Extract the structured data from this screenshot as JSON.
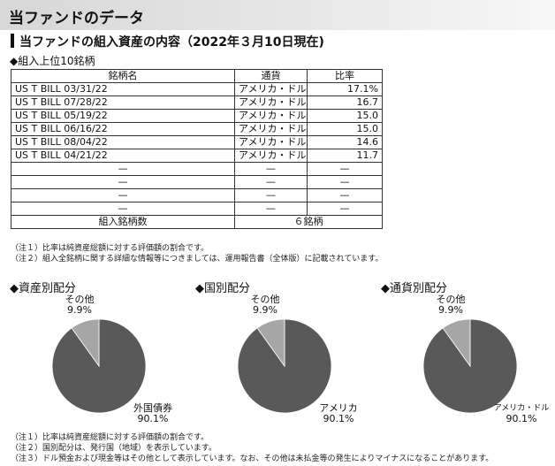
{
  "header": {
    "title": "当ファンドのデータ"
  },
  "section": {
    "title": "当ファンドの組入資産の内容（2022年３月10日現在)",
    "top10_title": "◆組入上位10銘柄"
  },
  "holdings_table": {
    "headers": {
      "name": "銘柄名",
      "currency": "通貨",
      "ratio": "比率"
    },
    "rows": [
      {
        "name": "US T BILL 03/31/22",
        "currency": "アメリカ・ドル",
        "ratio": "17.1%"
      },
      {
        "name": "US T BILL 07/28/22",
        "currency": "アメリカ・ドル",
        "ratio": "16.7"
      },
      {
        "name": "US T BILL 05/19/22",
        "currency": "アメリカ・ドル",
        "ratio": "15.0"
      },
      {
        "name": "US T BILL 06/16/22",
        "currency": "アメリカ・ドル",
        "ratio": "15.0"
      },
      {
        "name": "US T BILL 08/04/22",
        "currency": "アメリカ・ドル",
        "ratio": "14.6"
      },
      {
        "name": "US T BILL 04/21/22",
        "currency": "アメリカ・ドル",
        "ratio": "11.7"
      },
      {
        "name": "—",
        "currency": "—",
        "ratio": "—"
      },
      {
        "name": "—",
        "currency": "—",
        "ratio": "—"
      },
      {
        "name": "—",
        "currency": "—",
        "ratio": "—"
      },
      {
        "name": "—",
        "currency": "—",
        "ratio": "—"
      }
    ],
    "total_label": "組入銘柄数",
    "total_value": "６銘柄"
  },
  "table_notes": [
    "（注１）比率は純資産総額に対する評価額の割合です。",
    "（注２）組入全銘柄に関する詳細な情報等につきましては、運用報告書（全体版）に記載されています。"
  ],
  "chart_data": [
    {
      "type": "pie",
      "title": "◆資産別配分",
      "slices": [
        {
          "label": "外国債券",
          "value": 90.1,
          "value_label": "90.1%",
          "color": "#595959"
        },
        {
          "label": "その他",
          "value": 9.9,
          "value_label": "9.9%",
          "color": "#a6a6a6"
        }
      ]
    },
    {
      "type": "pie",
      "title": "◆国別配分",
      "slices": [
        {
          "label": "アメリカ",
          "value": 90.1,
          "value_label": "90.1%",
          "color": "#595959"
        },
        {
          "label": "その他",
          "value": 9.9,
          "value_label": "9.9%",
          "color": "#a6a6a6"
        }
      ]
    },
    {
      "type": "pie",
      "title": "◆通貨別配分",
      "slices": [
        {
          "label": "アメリカ・ドル",
          "value": 90.1,
          "value_label": "90.1%",
          "color": "#595959"
        },
        {
          "label": "その他",
          "value": 9.9,
          "value_label": "9.9%",
          "color": "#a6a6a6"
        }
      ]
    }
  ],
  "chart_notes": [
    "（注１）比率は純資産総額に対する評価額の割合です。",
    "（注２）国別配分は、発行国（地域）を表示しています。",
    "（注３）ドル預金および現金等はその他として表示しています。なお、その他は未払金等の発生によりマイナスになることがあります。"
  ]
}
